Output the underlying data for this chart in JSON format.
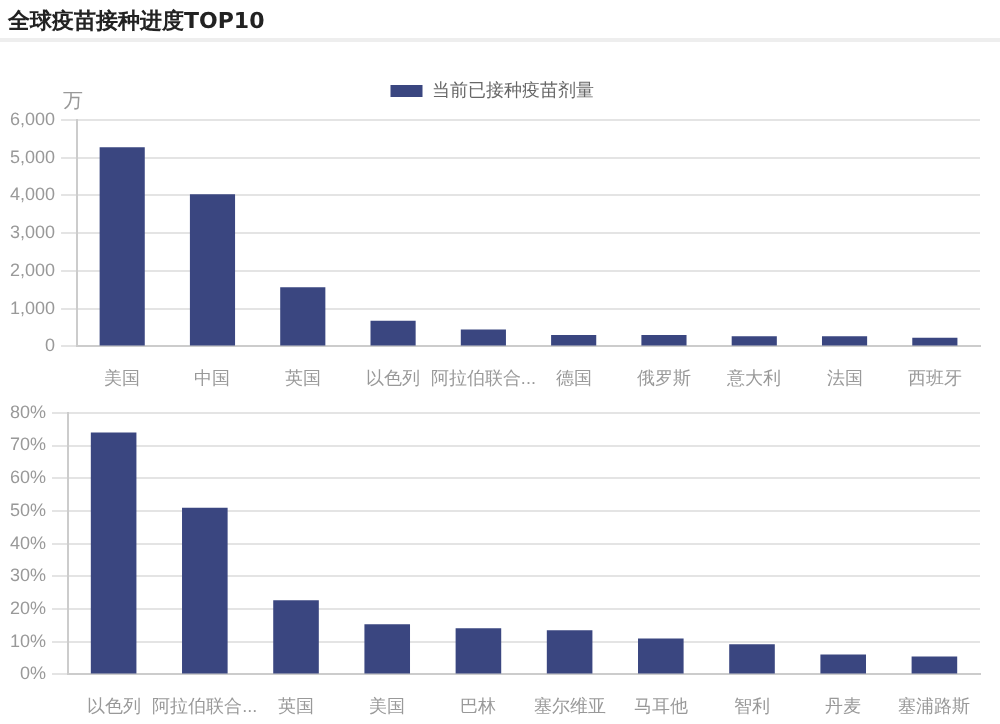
{
  "chart_data": [
    {
      "type": "bar",
      "title": "全球疫苗接种进度TOP10",
      "ylabel": "万",
      "categories": [
        "美国",
        "中国",
        "英国",
        "以色列",
        "阿拉伯联合...",
        "德国",
        "俄罗斯",
        "意大利",
        "法国",
        "西班牙"
      ],
      "series": [
        {
          "name": "当前已接种疫苗剂量",
          "color": "#3a4680",
          "values": [
            5280,
            4030,
            1570,
            680,
            450,
            300,
            300,
            270,
            270,
            230
          ]
        }
      ],
      "ylim": [
        0,
        6000
      ],
      "yticks": [
        0,
        {
          "value": 1000,
          "label": "1,000"
        },
        {
          "value": 2000,
          "label": "2,000"
        },
        {
          "value": 3000,
          "label": "3,000"
        },
        {
          "value": 4000,
          "label": "4,000"
        },
        {
          "value": 5000,
          "label": "5,000"
        },
        {
          "value": 6000,
          "label": "6,000"
        }
      ],
      "grid": "y",
      "legend": "top"
    },
    {
      "type": "bar",
      "categories": [
        "以色列",
        "阿拉伯联合...",
        "英国",
        "美国",
        "巴林",
        "塞尔维亚",
        "马耳他",
        "智利",
        "丹麦",
        "塞浦路斯"
      ],
      "series": [
        {
          "color": "#3a4680",
          "values": [
            74,
            51,
            22.7,
            15.3,
            14.1,
            13.5,
            11,
            9.2,
            6.1,
            5.5
          ]
        }
      ],
      "ylim": [
        0,
        80
      ],
      "yticks": [
        {
          "value": 0,
          "label": "0%"
        },
        {
          "value": 10,
          "label": "10%"
        },
        {
          "value": 20,
          "label": "20%"
        },
        {
          "value": 30,
          "label": "30%"
        },
        {
          "value": 40,
          "label": "40%"
        },
        {
          "value": 50,
          "label": "50%"
        },
        {
          "value": 60,
          "label": "60%"
        },
        {
          "value": 70,
          "label": "70%"
        },
        {
          "value": 80,
          "label": "80%"
        }
      ],
      "grid": "y"
    }
  ]
}
